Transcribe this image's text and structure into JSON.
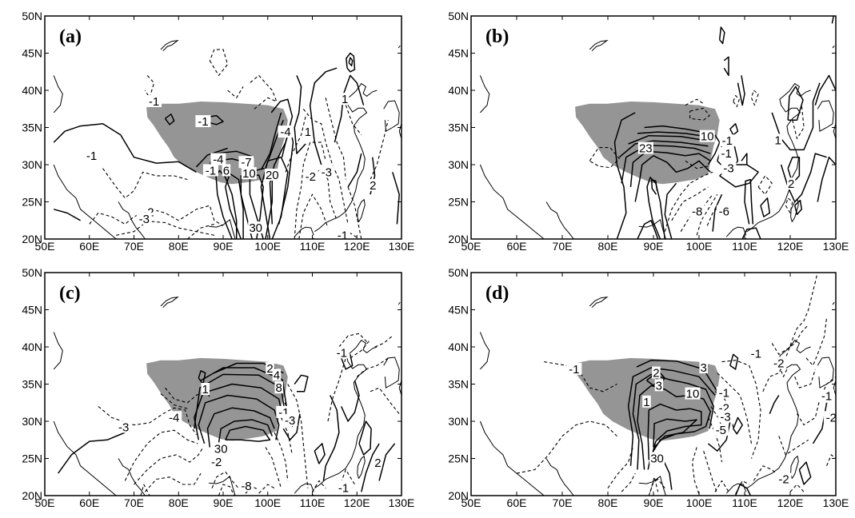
{
  "axes": {
    "x_ticks": [
      "50E",
      "60E",
      "70E",
      "80E",
      "90E",
      "100E",
      "110E",
      "120E",
      "130E"
    ],
    "y_ticks": [
      "20N",
      "25N",
      "30N",
      "35N",
      "40N",
      "45N",
      "50N"
    ]
  },
  "panels": [
    {
      "id": "a",
      "label": "(a)",
      "contour_labels": [
        "-1",
        "-1",
        "-1",
        "-4",
        "-7",
        "-1",
        "6",
        "10",
        "20",
        "30",
        "-2",
        "-2",
        "-3",
        "-3",
        "-4",
        "1",
        "1",
        "2",
        "-1"
      ]
    },
    {
      "id": "b",
      "label": "(b)",
      "contour_labels": [
        "23",
        "10",
        "-1",
        "-1",
        "-3",
        "-8",
        "-6",
        "1",
        "2"
      ]
    },
    {
      "id": "c",
      "label": "(c)",
      "contour_labels": [
        "1",
        "2",
        "4",
        "8",
        "-1",
        "-3",
        "-4",
        "30",
        "-2",
        "-3",
        "-1",
        "-1",
        "2",
        "-8",
        "-1"
      ]
    },
    {
      "id": "d",
      "label": "(d)",
      "contour_labels": [
        "-1",
        "2",
        "3",
        "1",
        "3",
        "10",
        "-1",
        "-2",
        "-3",
        "-5",
        "30",
        "-1",
        "-2",
        "-1",
        "-2",
        "-2"
      ]
    }
  ],
  "colors": {
    "shading": "#959595",
    "lines": "#000000",
    "background": "#ffffff"
  }
}
